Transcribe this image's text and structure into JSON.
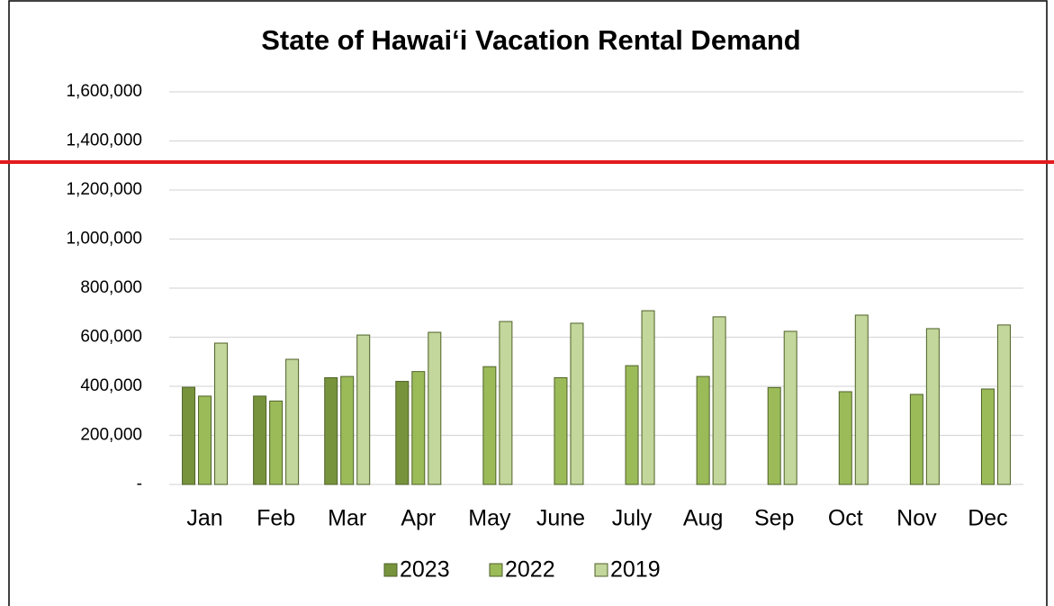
{
  "chart_data": {
    "type": "bar",
    "title": "State of Hawai‘i Vacation Rental Demand",
    "categories": [
      "Jan",
      "Feb",
      "Mar",
      "Apr",
      "May",
      "June",
      "July",
      "Aug",
      "Sep",
      "Oct",
      "Nov",
      "Dec"
    ],
    "series": [
      {
        "name": "2023",
        "color": "#77933c",
        "values": [
          396000,
          360000,
          435000,
          420000,
          null,
          null,
          null,
          null,
          null,
          null,
          null,
          null
        ]
      },
      {
        "name": "2022",
        "color": "#9bbb59",
        "values": [
          360000,
          340000,
          440000,
          460000,
          480000,
          435000,
          484000,
          440000,
          395000,
          378000,
          367000,
          389000
        ]
      },
      {
        "name": "2019",
        "color": "#c3d69b",
        "values": [
          576000,
          510000,
          609000,
          620000,
          664000,
          657000,
          708000,
          683000,
          624000,
          690000,
          635000,
          650000
        ]
      }
    ],
    "ylim": [
      0,
      1600000
    ],
    "yticks": [
      {
        "value": 0,
        "label": "-"
      },
      {
        "value": 200000,
        "label": "200,000"
      },
      {
        "value": 400000,
        "label": "400,000"
      },
      {
        "value": 600000,
        "label": "600,000"
      },
      {
        "value": 800000,
        "label": "800,000"
      },
      {
        "value": 1000000,
        "label": "1,000,000"
      },
      {
        "value": 1200000,
        "label": "1,200,000"
      },
      {
        "value": 1400000,
        "label": "1,400,000"
      },
      {
        "value": 1600000,
        "label": "1,600,000"
      }
    ],
    "grid": true,
    "legend": "bottom"
  }
}
